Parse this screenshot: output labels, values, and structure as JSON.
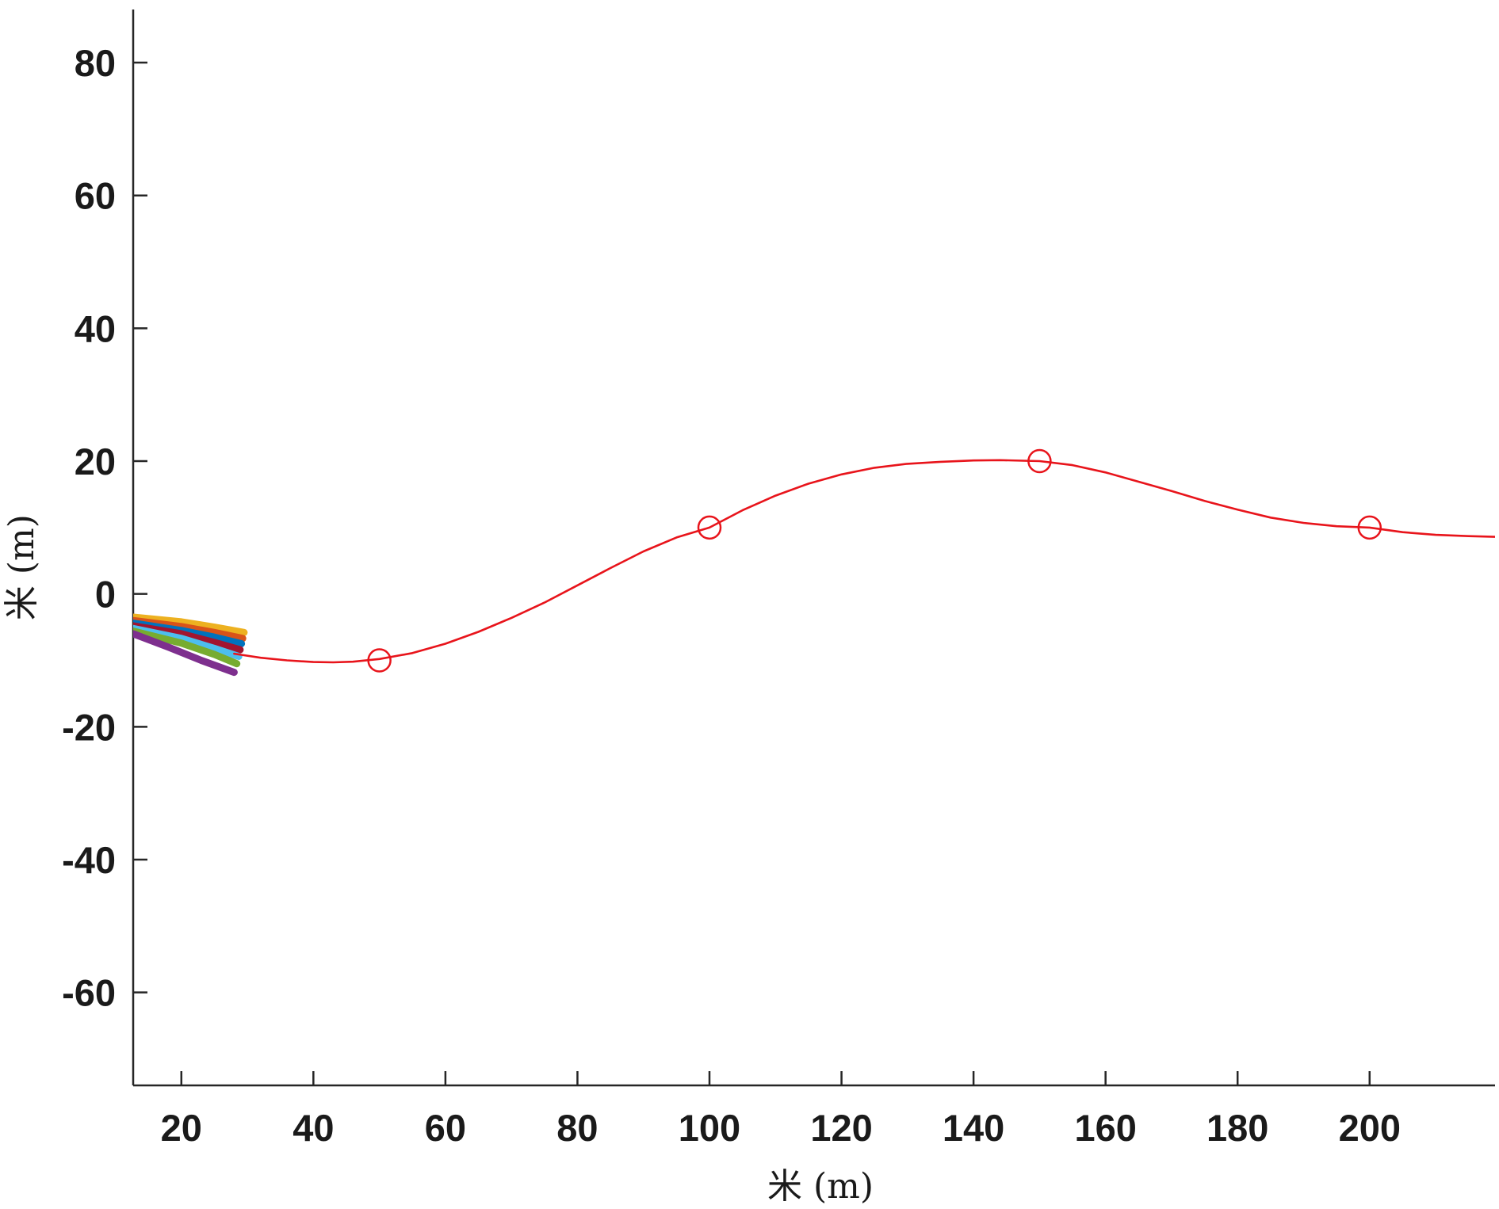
{
  "chart_data": {
    "type": "line",
    "xlabel": "米 (m)",
    "ylabel": "米 (m)",
    "xlim": [
      12.7,
      219
    ],
    "ylim": [
      -74,
      88
    ],
    "xticks": [
      20,
      40,
      60,
      80,
      100,
      120,
      140,
      160,
      180,
      200
    ],
    "yticks": [
      -60,
      -40,
      -20,
      0,
      20,
      40,
      60,
      80
    ],
    "grid": false,
    "series": [
      {
        "color": "#e8141b",
        "style": "line",
        "points": [
          [
            28,
            -9.0
          ],
          [
            32,
            -9.6
          ],
          [
            36,
            -10.0
          ],
          [
            40,
            -10.25
          ],
          [
            43,
            -10.3
          ],
          [
            46,
            -10.2
          ],
          [
            50,
            -9.8
          ],
          [
            55,
            -8.9
          ],
          [
            60,
            -7.5
          ],
          [
            65,
            -5.7
          ],
          [
            70,
            -3.6
          ],
          [
            75,
            -1.3
          ],
          [
            80,
            1.3
          ],
          [
            85,
            3.9
          ],
          [
            90,
            6.4
          ],
          [
            95,
            8.5
          ],
          [
            100,
            10.0
          ],
          [
            105,
            12.6
          ],
          [
            110,
            14.8
          ],
          [
            115,
            16.6
          ],
          [
            120,
            18.0
          ],
          [
            125,
            19.0
          ],
          [
            130,
            19.6
          ],
          [
            135,
            19.9
          ],
          [
            140,
            20.1
          ],
          [
            144,
            20.15
          ],
          [
            150,
            20.0
          ],
          [
            155,
            19.4
          ],
          [
            160,
            18.3
          ],
          [
            165,
            16.9
          ],
          [
            170,
            15.5
          ],
          [
            175,
            14.0
          ],
          [
            180,
            12.7
          ],
          [
            185,
            11.5
          ],
          [
            190,
            10.7
          ],
          [
            195,
            10.2
          ],
          [
            200,
            10.0
          ],
          [
            205,
            9.3
          ],
          [
            210,
            8.9
          ],
          [
            215,
            8.7
          ],
          [
            219,
            8.6
          ]
        ]
      },
      {
        "color": "#e8141b",
        "style": "markers",
        "marker": "circle-open",
        "points": [
          [
            50,
            -10
          ],
          [
            100,
            10
          ],
          [
            150,
            20
          ],
          [
            200,
            10
          ]
        ]
      },
      {
        "color": "#edb120",
        "style": "thick-line",
        "points": [
          [
            12.7,
            -3.5
          ],
          [
            20,
            -4.2
          ],
          [
            25,
            -5.0
          ],
          [
            29.5,
            -5.8
          ]
        ]
      },
      {
        "color": "#d95319",
        "style": "thick-line",
        "points": [
          [
            12.7,
            -4.0
          ],
          [
            20,
            -4.9
          ],
          [
            25,
            -5.8
          ],
          [
            29.3,
            -6.7
          ]
        ]
      },
      {
        "color": "#0072bd",
        "style": "thick-line",
        "points": [
          [
            12.7,
            -4.4
          ],
          [
            20,
            -5.5
          ],
          [
            25,
            -6.5
          ],
          [
            29.1,
            -7.5
          ]
        ]
      },
      {
        "color": "#a2142f",
        "style": "thick-line",
        "points": [
          [
            12.7,
            -4.8
          ],
          [
            20,
            -6.0
          ],
          [
            25,
            -7.3
          ],
          [
            28.9,
            -8.4
          ]
        ]
      },
      {
        "color": "#4dbeee",
        "style": "thick-line",
        "points": [
          [
            12.7,
            -5.2
          ],
          [
            20,
            -6.7
          ],
          [
            25,
            -8.2
          ],
          [
            28.7,
            -9.4
          ]
        ]
      },
      {
        "color": "#77ac30",
        "style": "thick-line",
        "points": [
          [
            12.7,
            -5.6
          ],
          [
            20,
            -7.4
          ],
          [
            25,
            -9.1
          ],
          [
            28.4,
            -10.5
          ]
        ]
      },
      {
        "color": "#7e2f8e",
        "style": "thick-line",
        "points": [
          [
            12.7,
            -6.0
          ],
          [
            18,
            -8.0
          ],
          [
            23,
            -10.0
          ],
          [
            28.0,
            -11.8
          ]
        ]
      }
    ]
  }
}
